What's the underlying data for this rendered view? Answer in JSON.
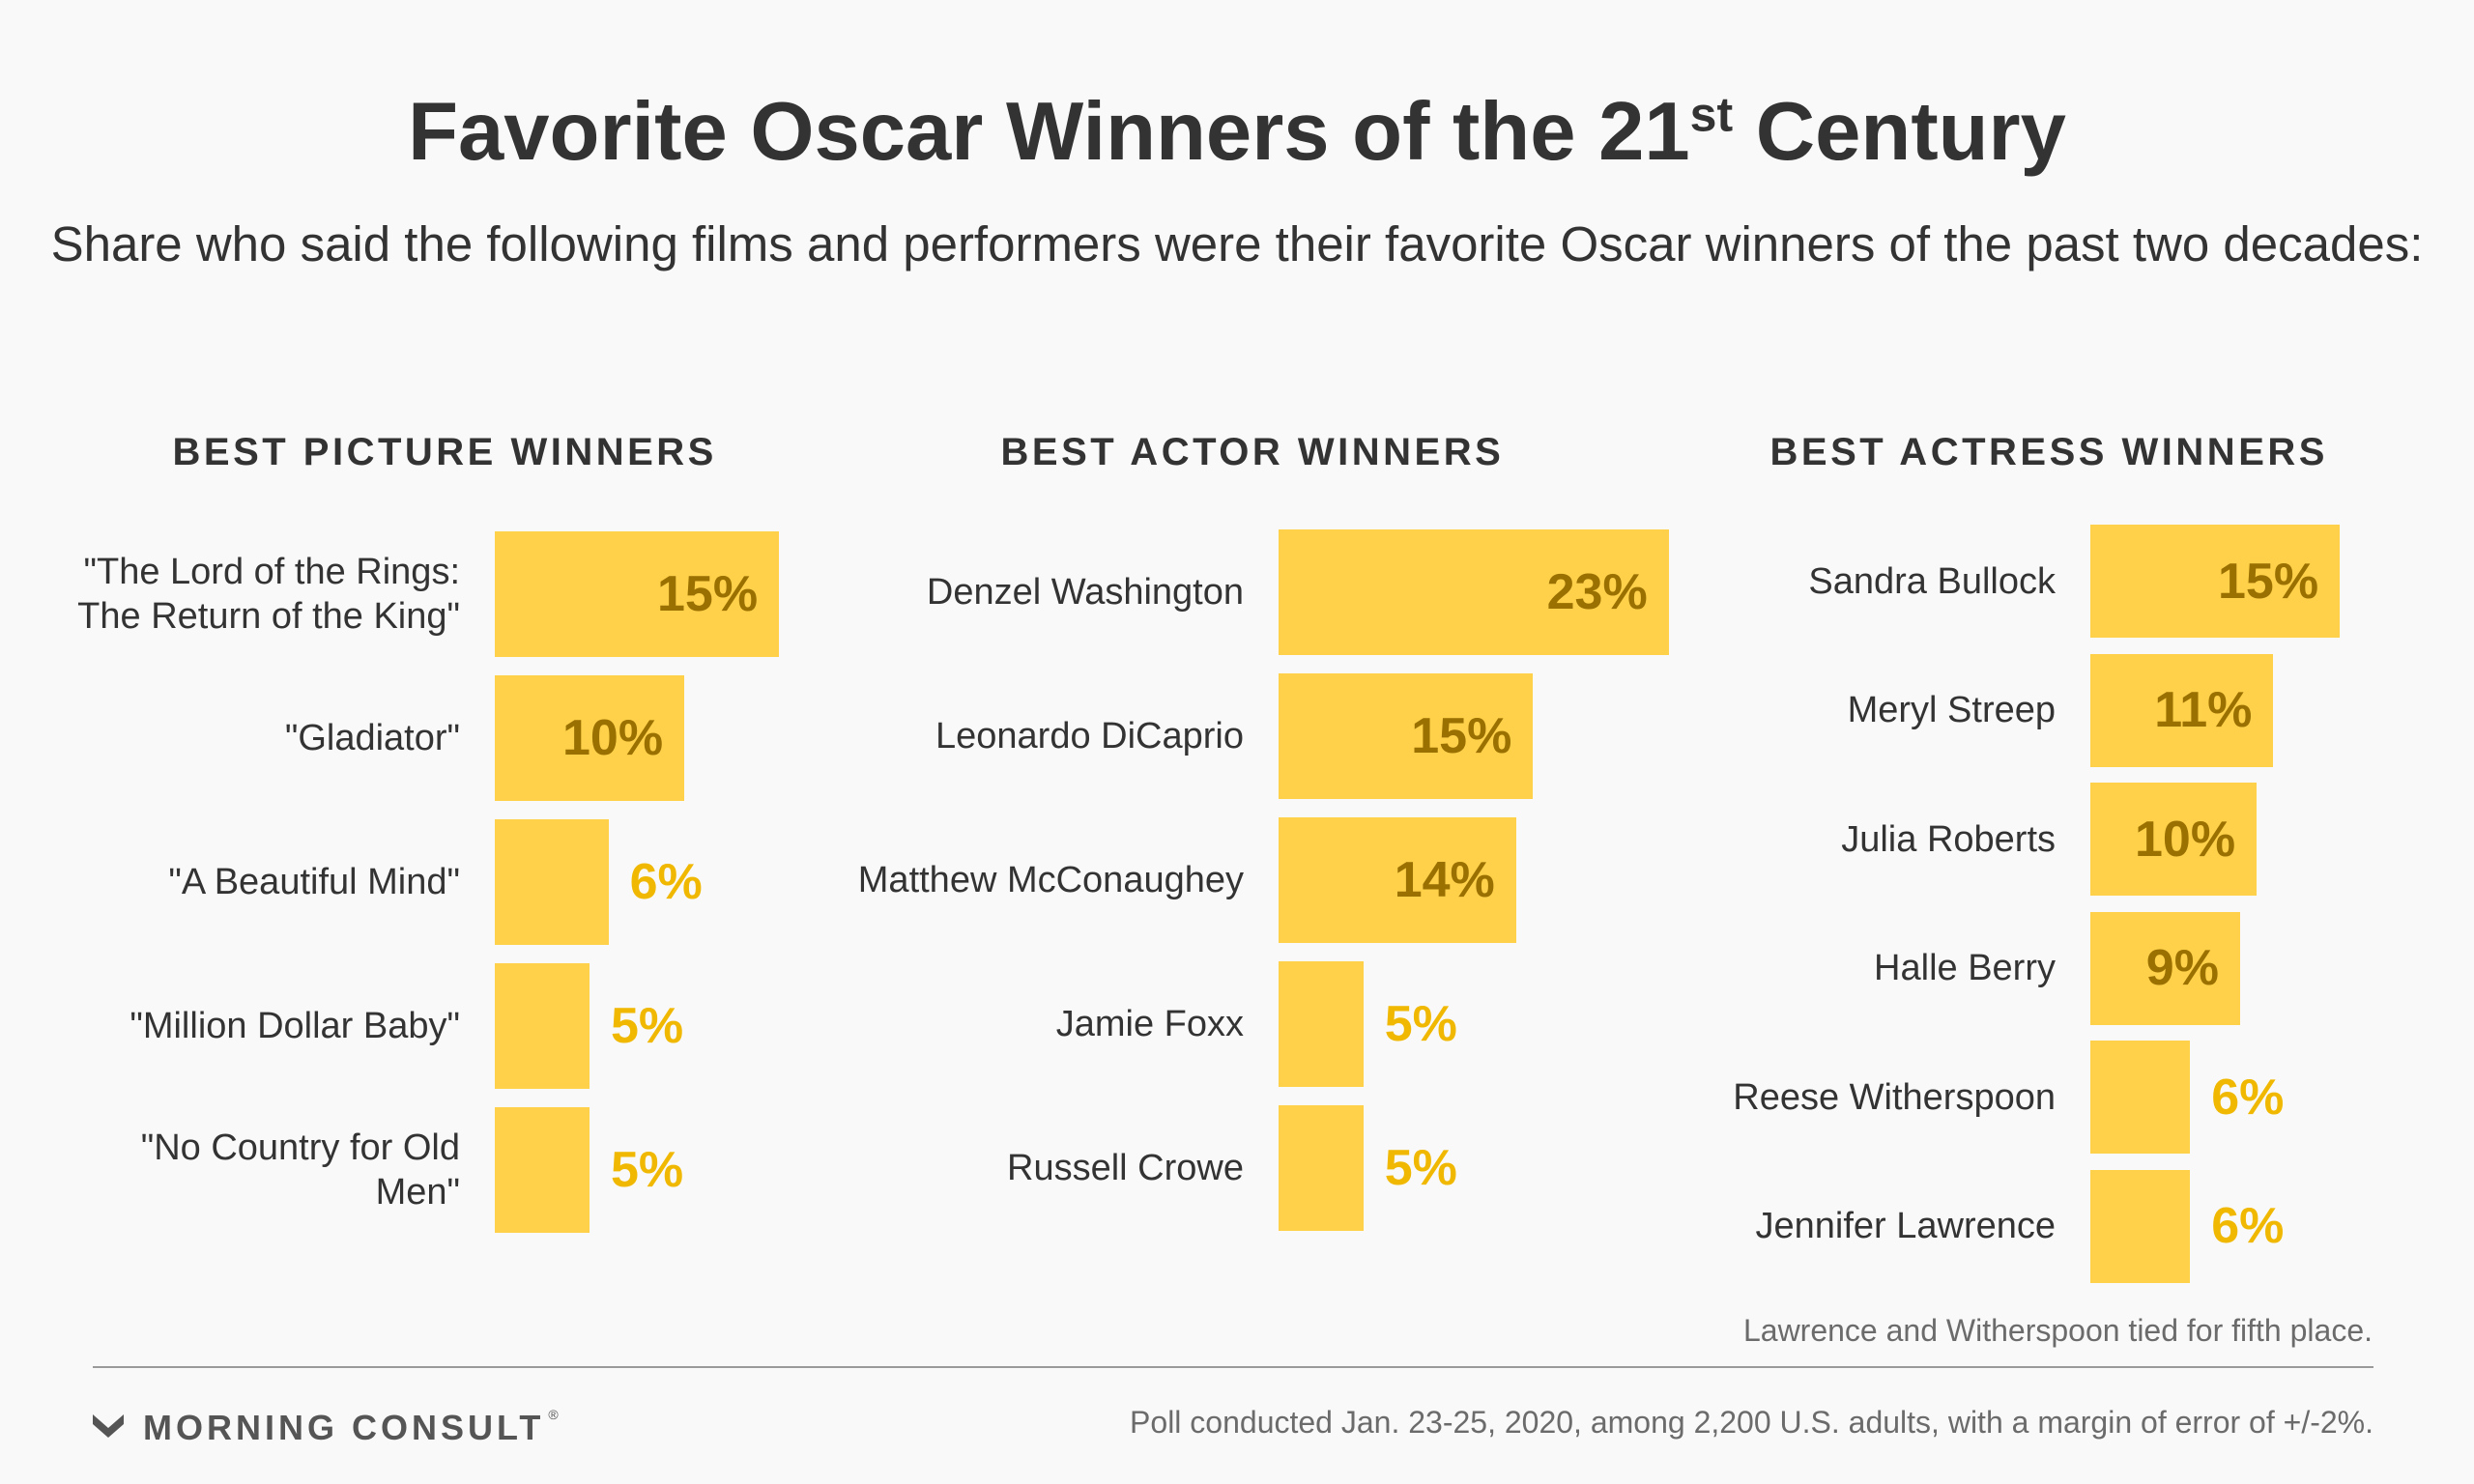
{
  "title": {
    "main": "Favorite Oscar Winners of the 21",
    "sup": "st",
    "end": " Century"
  },
  "subtitle": "Share who said the following films and performers were their favorite Oscar winners of the past two decades:",
  "colors": {
    "bar": "#ffd04a",
    "value_inside": "#9a7000",
    "value_outside": "#f0b800",
    "text": "#333333",
    "muted": "#6b6b6b",
    "background": "#f9f9f9"
  },
  "chart_data": [
    {
      "type": "bar",
      "orientation": "horizontal",
      "title": "BEST PICTURE WINNERS",
      "categories": [
        "\"The Lord of the Rings: The Return of the King\"",
        "\"Gladiator\"",
        "\"A Beautiful Mind\"",
        "\"Million Dollar Baby\"",
        "\"No Country for Old Men\""
      ],
      "values": [
        15,
        10,
        6,
        5,
        5
      ],
      "value_labels": [
        "15%",
        "10%",
        "6%",
        "5%",
        "5%"
      ],
      "unit": "%"
    },
    {
      "type": "bar",
      "orientation": "horizontal",
      "title": "BEST ACTOR WINNERS",
      "categories": [
        "Denzel Washington",
        "Leonardo DiCaprio",
        "Matthew McConaughey",
        "Jamie Foxx",
        "Russell Crowe"
      ],
      "values": [
        23,
        15,
        14,
        5,
        5
      ],
      "value_labels": [
        "23%",
        "15%",
        "14%",
        "5%",
        "5%"
      ],
      "unit": "%"
    },
    {
      "type": "bar",
      "orientation": "horizontal",
      "title": "BEST ACTRESS WINNERS",
      "categories": [
        "Sandra Bullock",
        "Meryl Streep",
        "Julia Roberts",
        "Halle Berry",
        "Reese Witherspoon",
        "Jennifer Lawrence"
      ],
      "values": [
        15,
        11,
        10,
        9,
        6,
        6
      ],
      "value_labels": [
        "15%",
        "11%",
        "10%",
        "9%",
        "6%",
        "6%"
      ],
      "unit": "%"
    }
  ],
  "note": "Lawrence and Witherspoon tied for fifth place.",
  "logo": {
    "icon": "morning-consult-chevron-icon",
    "text": "MORNING CONSULT",
    "tm": "®"
  },
  "source": "Poll conducted Jan. 23-25, 2020, among 2,200 U.S. adults, with a margin of error of +/-2%."
}
